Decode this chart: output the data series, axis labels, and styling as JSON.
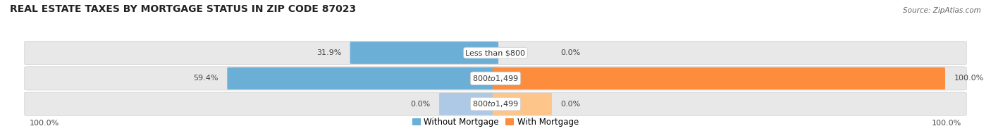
{
  "title": "REAL ESTATE TAXES BY MORTGAGE STATUS IN ZIP CODE 87023",
  "source": "Source: ZipAtlas.com",
  "rows": [
    {
      "label": "Less than $800",
      "without_mortgage_pct": 31.9,
      "with_mortgage_pct": 0.0
    },
    {
      "label": "$800 to $1,499",
      "without_mortgage_pct": 59.4,
      "with_mortgage_pct": 100.0
    },
    {
      "label": "$800 to $1,499",
      "without_mortgage_pct": 0.0,
      "with_mortgage_pct": 0.0,
      "is_small": true
    }
  ],
  "left_label": "100.0%",
  "right_label": "100.0%",
  "color_without": "#6baed6",
  "color_without_light": "#aec9e6",
  "color_with": "#fd8d3c",
  "color_with_light": "#fdc58a",
  "bar_bg": "#e8e8e8",
  "bar_bg_edge": "#d0d0d0",
  "title_fontsize": 10,
  "source_fontsize": 7.5,
  "label_fontsize": 8,
  "legend_fontsize": 8.5
}
